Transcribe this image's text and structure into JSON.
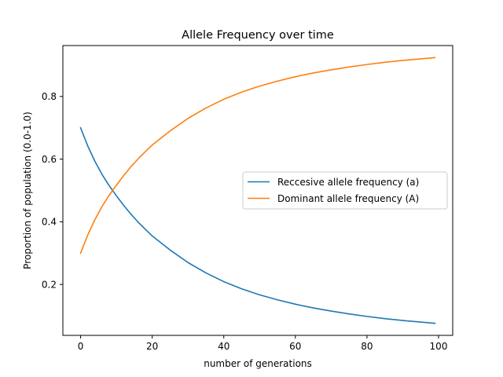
{
  "chart_data": {
    "type": "line",
    "title": "Allele Frequency over time",
    "xlabel": "number of generations",
    "ylabel": "Proportion of population (0.0-1.0)",
    "xlim": [
      -4.95,
      103.95
    ],
    "ylim": [
      0.0375,
      0.9625
    ],
    "xticks": [
      0,
      20,
      40,
      60,
      80,
      100
    ],
    "yticks": [
      0.2,
      0.4,
      0.6,
      0.8
    ],
    "grid": false,
    "legend_position": "center-right",
    "x": [
      0,
      2,
      4,
      6,
      8,
      10,
      12,
      14,
      16,
      18,
      20,
      25,
      30,
      35,
      40,
      45,
      50,
      55,
      60,
      65,
      70,
      75,
      80,
      85,
      90,
      95,
      99
    ],
    "series": [
      {
        "name": "Reccesive allele frequency (a)",
        "color": "#1f77b4",
        "values": [
          0.7,
          0.642,
          0.593,
          0.551,
          0.515,
          0.483,
          0.453,
          0.425,
          0.4,
          0.377,
          0.355,
          0.31,
          0.27,
          0.237,
          0.209,
          0.186,
          0.167,
          0.151,
          0.137,
          0.125,
          0.115,
          0.106,
          0.098,
          0.091,
          0.085,
          0.08,
          0.076
        ]
      },
      {
        "name": "Dominant allele frequency (A)",
        "color": "#ff7f0e",
        "values": [
          0.3,
          0.358,
          0.407,
          0.449,
          0.485,
          0.517,
          0.547,
          0.575,
          0.6,
          0.623,
          0.645,
          0.69,
          0.73,
          0.763,
          0.791,
          0.814,
          0.833,
          0.849,
          0.863,
          0.875,
          0.885,
          0.894,
          0.902,
          0.909,
          0.915,
          0.92,
          0.924
        ]
      }
    ]
  }
}
